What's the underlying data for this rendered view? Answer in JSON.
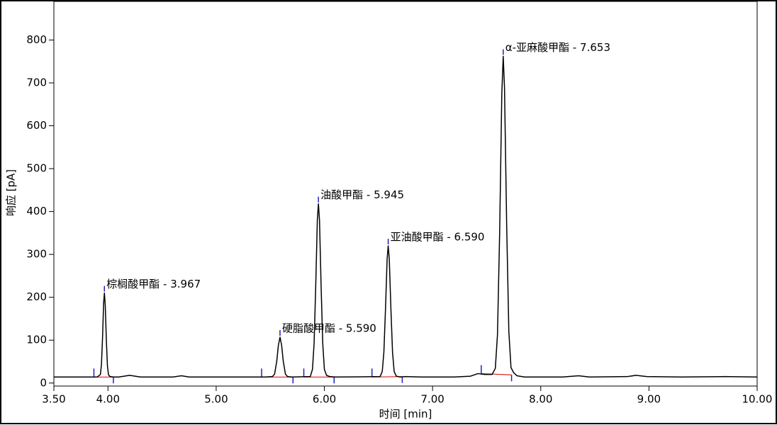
{
  "chart_data": {
    "type": "line",
    "x_label": "时间 [min]",
    "y_label": "响应 [pA]",
    "xlim": [
      3.5,
      10.0
    ],
    "xticks": [
      {
        "value": 3.5,
        "label": "3.50"
      },
      {
        "value": 4.0,
        "label": "4.00"
      },
      {
        "value": 5.0,
        "label": "5.00"
      },
      {
        "value": 6.0,
        "label": "6.00"
      },
      {
        "value": 7.0,
        "label": "7.00"
      },
      {
        "value": 8.0,
        "label": "8.00"
      },
      {
        "value": 9.0,
        "label": "9.00"
      },
      {
        "value": 10.0,
        "label": "10.00"
      }
    ],
    "ylim": [
      -7,
      890
    ],
    "yticks": [
      0,
      100,
      200,
      300,
      400,
      500,
      600,
      700,
      800
    ],
    "grid": false,
    "series": [
      {
        "color": "#000000",
        "x": [
          3.5,
          3.9,
          3.93,
          3.94,
          3.95,
          3.96,
          3.967,
          3.975,
          3.985,
          3.995,
          4.005,
          4.02,
          4.05,
          4.1,
          4.2,
          4.3,
          4.6,
          4.68,
          4.75,
          5.0,
          5.3,
          5.45,
          5.52,
          5.54,
          5.56,
          5.575,
          5.59,
          5.605,
          5.62,
          5.64,
          5.66,
          5.7,
          5.87,
          5.89,
          5.905,
          5.92,
          5.935,
          5.945,
          5.955,
          5.97,
          5.985,
          6.0,
          6.02,
          6.05,
          6.1,
          6.515,
          6.535,
          6.55,
          6.565,
          6.58,
          6.59,
          6.6,
          6.615,
          6.63,
          6.645,
          6.665,
          6.7,
          6.75,
          6.9,
          7.2,
          7.35,
          7.42,
          7.48,
          7.55,
          7.58,
          7.6,
          7.62,
          7.64,
          7.653,
          7.665,
          7.685,
          7.705,
          7.725,
          7.75,
          7.78,
          7.85,
          8.2,
          8.35,
          8.45,
          8.8,
          8.88,
          8.98,
          9.3,
          9.7,
          10.0
        ],
        "values": [
          14,
          14,
          20,
          44,
          108,
          187,
          210,
          180,
          100,
          40,
          19,
          15,
          14,
          14,
          18,
          14,
          14,
          17,
          14,
          14,
          14,
          14,
          15,
          21,
          51,
          88,
          107,
          88,
          51,
          21,
          15,
          14,
          15,
          32,
          92,
          225,
          380,
          418,
          380,
          225,
          92,
          32,
          18,
          15,
          14,
          15,
          27,
          72,
          173,
          289,
          320,
          289,
          173,
          72,
          27,
          16,
          14,
          15,
          14,
          14,
          16,
          22,
          20,
          20,
          34,
          113,
          350,
          675,
          762,
          688,
          367,
          120,
          36,
          24,
          17,
          14,
          14,
          17,
          14,
          15,
          18,
          15,
          14,
          15,
          14
        ]
      }
    ],
    "annotations": [
      {
        "label": "棕榈酸甲酯 - 3.967",
        "x": 3.967,
        "y": 210
      },
      {
        "label": "硬脂酸甲酯 - 5.590",
        "x": 5.59,
        "y": 107
      },
      {
        "label": "油酸甲酯 - 5.945",
        "x": 5.945,
        "y": 418
      },
      {
        "label": "亚油酸甲酯 - 6.590",
        "x": 6.59,
        "y": 320
      },
      {
        "label": "α-亚麻酸甲酯 - 7.653",
        "x": 7.653,
        "y": 762
      }
    ],
    "integrations": [
      {
        "start": 3.87,
        "end": 4.05,
        "start_y": 14,
        "end_y": 14
      },
      {
        "start": 5.42,
        "end": 5.71,
        "start_y": 14,
        "end_y": 14
      },
      {
        "start": 5.81,
        "end": 6.09,
        "start_y": 14,
        "end_y": 14
      },
      {
        "start": 6.44,
        "end": 6.72,
        "start_y": 14,
        "end_y": 15
      },
      {
        "start": 7.45,
        "end": 7.73,
        "start_y": 22,
        "end_y": 19
      }
    ],
    "baseline_color": "#e02020",
    "marker_color": "#2020c0"
  }
}
